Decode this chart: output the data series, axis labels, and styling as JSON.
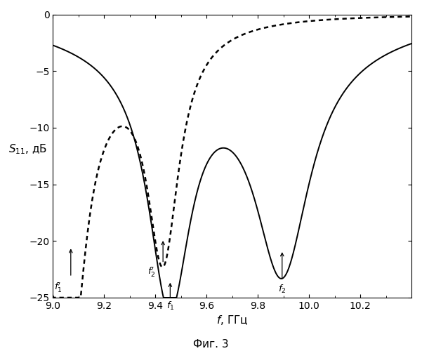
{
  "ylabel": "$S_{11}$, дБ",
  "xlabel": "$f$, ГГц",
  "fig_caption": "Фиг. 3",
  "xlim": [
    9.0,
    10.4
  ],
  "ylim": [
    -25,
    0
  ],
  "xticks": [
    9.0,
    9.2,
    9.4,
    9.6,
    9.8,
    10.0,
    10.2
  ],
  "yticks": [
    0,
    -5,
    -10,
    -15,
    -20,
    -25
  ],
  "background": "#ffffff",
  "line_color": "#000000"
}
